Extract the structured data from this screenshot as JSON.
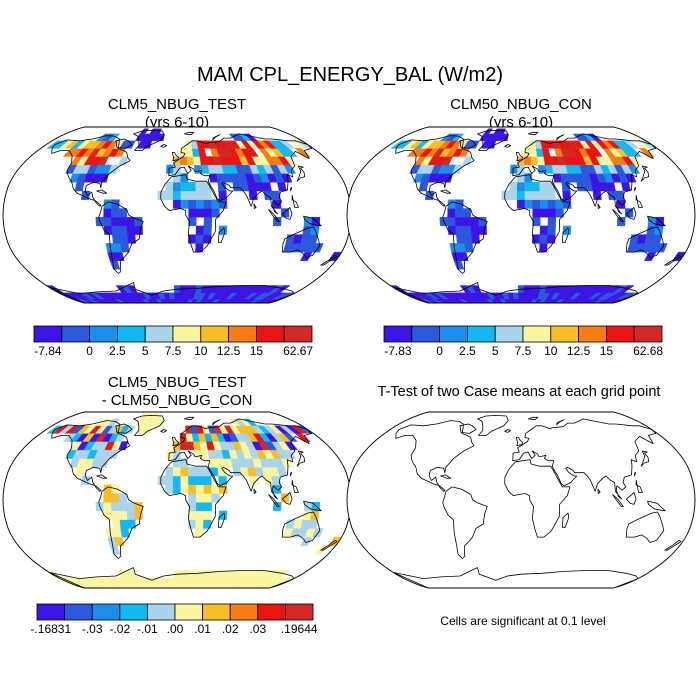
{
  "title": "MAM CPL_ENERGY_BAL (W/m2)",
  "colors": {
    "levels": [
      "#3c14e6",
      "#2b58dc",
      "#1e8ceb",
      "#12b8f0",
      "#a8d4ee",
      "#faf5a0",
      "#f8be28",
      "#f57d14",
      "#eb1414",
      "#d22828"
    ],
    "land": "#ffffff",
    "coast": "#000000"
  },
  "panels": [
    {
      "title_line1": "CLM5_NBUG_TEST",
      "title_line2": "(yrs 6-10)"
    },
    {
      "title_line1": "CLM50_NBUG_CON",
      "title_line2": "(yrs 6-10)"
    },
    {
      "title_line1": "CLM5_NBUG_TEST",
      "title_line2": "- CLM50_NBUG_CON"
    },
    {
      "title_line1": "T-Test of two Case means at each grid point",
      "title_line2": ""
    }
  ],
  "chart_data": [
    {
      "type": "heatmap",
      "projection": "robinson",
      "title": "CLM5_NBUG_TEST (yrs 6-10)",
      "colorbar_labels": [
        "-7.84",
        "0",
        "2.5",
        "5",
        "7.5",
        "10",
        "12.5",
        "15",
        "62.67"
      ],
      "range": [
        -7.84,
        62.67
      ]
    },
    {
      "type": "heatmap",
      "projection": "robinson",
      "title": "CLM50_NBUG_CON (yrs 6-10)",
      "colorbar_labels": [
        "-7.83",
        "0",
        "2.5",
        "5",
        "7.5",
        "10",
        "12.5",
        "15",
        "62.68"
      ],
      "range": [
        -7.83,
        62.68
      ]
    },
    {
      "type": "heatmap",
      "projection": "robinson",
      "title": "CLM5_NBUG_TEST - CLM50_NBUG_CON",
      "colorbar_labels": [
        "-.16831",
        "-.03",
        "-.02",
        "-.01",
        ".00",
        ".01",
        ".02",
        ".03",
        ".19644"
      ],
      "range": [
        -0.16831,
        0.19644
      ]
    },
    {
      "type": "heatmap",
      "projection": "robinson",
      "title": "T-Test of two Case means at each grid point",
      "note": "Cells are significant at 0.1 level"
    }
  ]
}
